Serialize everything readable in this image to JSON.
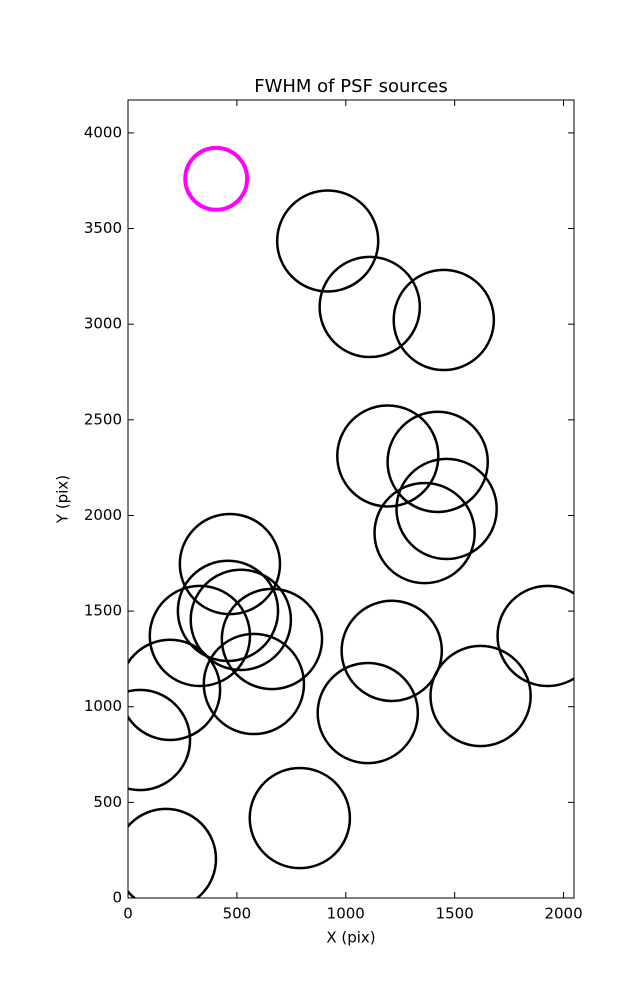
{
  "chart_data": {
    "type": "scatter",
    "title": "FWHM of PSF sources",
    "x_label": "X (pix)",
    "y_label": "Y (pix)",
    "xlim": [
      0,
      2048
    ],
    "ylim": [
      0,
      4172
    ],
    "xticks": [
      0,
      500,
      1000,
      1500,
      2000
    ],
    "yticks": [
      0,
      500,
      1000,
      1500,
      2000,
      2500,
      3000,
      3500,
      4000
    ],
    "series": [
      {
        "color": "#000000",
        "x": [
          917,
          1110,
          1450,
          1193,
          1422,
          1463,
          1362,
          468,
          459,
          518,
          330,
          661,
          193,
          578,
          55,
          1211,
          1101,
          1619,
          1927,
          789,
          174
        ],
        "values": [
          3435,
          3090,
          3022,
          2311,
          2280,
          2034,
          1908,
          1746,
          1501,
          1454,
          1370,
          1354,
          1088,
          1119,
          826,
          1292,
          967,
          1056,
          1370,
          418,
          204
        ],
        "sizes": [
          232,
          230,
          230,
          232,
          230,
          230,
          230,
          230,
          230,
          230,
          230,
          230,
          230,
          230,
          230,
          230,
          230,
          230,
          230,
          230,
          230
        ]
      },
      {
        "color": "#ff00ff",
        "x": [
          405
        ],
        "values": [
          3760
        ],
        "sizes": [
          142
        ]
      }
    ]
  }
}
